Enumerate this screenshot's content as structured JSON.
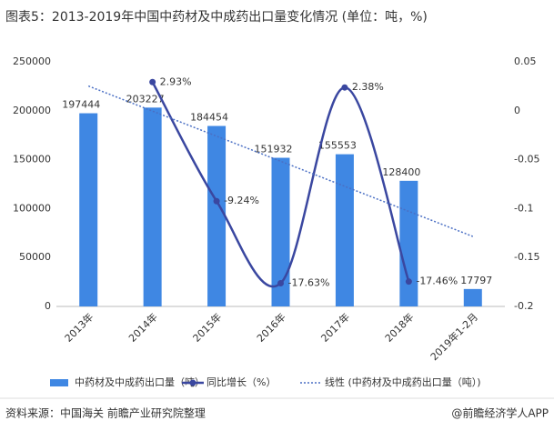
{
  "chart_data": {
    "type": "bar",
    "title": "图表5：2013-2019年中国中药材及中成药出口量变化情况 (单位：吨，%)",
    "categories": [
      "2013年",
      "2014年",
      "2015年",
      "2016年",
      "2017年",
      "2018年",
      "2019年1-2月"
    ],
    "series": [
      {
        "name": "中药材及中成药出口量（吨）",
        "type": "bar",
        "color": "#3f87e3",
        "values": [
          197444,
          203227,
          184454,
          151932,
          155553,
          128400,
          17797
        ]
      },
      {
        "name": "同比增长（%）",
        "type": "line",
        "axis": "y2",
        "color": "#3a47a0",
        "values": [
          null,
          0.0293,
          -0.0924,
          -0.1763,
          0.0238,
          -0.1746,
          null
        ],
        "value_labels": [
          null,
          "2.93%",
          "-9.24%",
          "-17.63%",
          "2.38%",
          "-17.46%",
          null
        ]
      },
      {
        "name": "线性 (中药材及中成药出口量（吨）)",
        "type": "trendline",
        "color": "#4a6fc4"
      }
    ],
    "ylim": [
      0,
      250000
    ],
    "yticks": [
      0,
      50000,
      100000,
      150000,
      200000,
      250000
    ],
    "y2lim": [
      -0.2,
      0.05
    ],
    "y2ticks": [
      -0.2,
      -0.15,
      -0.1,
      -0.05,
      0,
      0.05
    ],
    "source": "资料来源：中国海关 前瞻产业研究院整理",
    "credit": "@前瞻经济学人APP"
  }
}
